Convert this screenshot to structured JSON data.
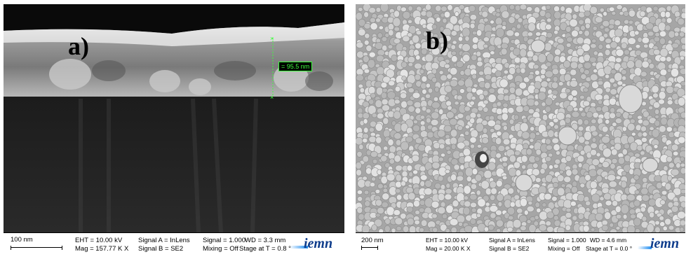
{
  "panels": {
    "a": {
      "label": "a)",
      "measurement": "= 95.5 nm",
      "scale": "100 nm",
      "eht": "EHT = 10.00 kV",
      "mag": "Mag = 157.77 K X",
      "signal_a": "Signal A = InLens",
      "signal_b": "Signal B = SE2",
      "signal": "Signal = 1.000",
      "mixing": "Mixing = Off",
      "wd": "WD = 3.3 mm",
      "stage": "Stage at T = 0.8 °",
      "logo": "iemn"
    },
    "b": {
      "label": "b)",
      "scale": "200 nm",
      "eht": "EHT = 10.00 kV",
      "mag": "Mag = 20.00 K X",
      "signal_a": "Signal A = InLens",
      "signal_b": "Signal B = SE2",
      "signal": "Signal = 1.000",
      "mixing": "Mixing = Off",
      "wd": "WD = 4.6 mm",
      "stage": "Stage at T = 0.0 °",
      "logo": "iemn"
    }
  }
}
